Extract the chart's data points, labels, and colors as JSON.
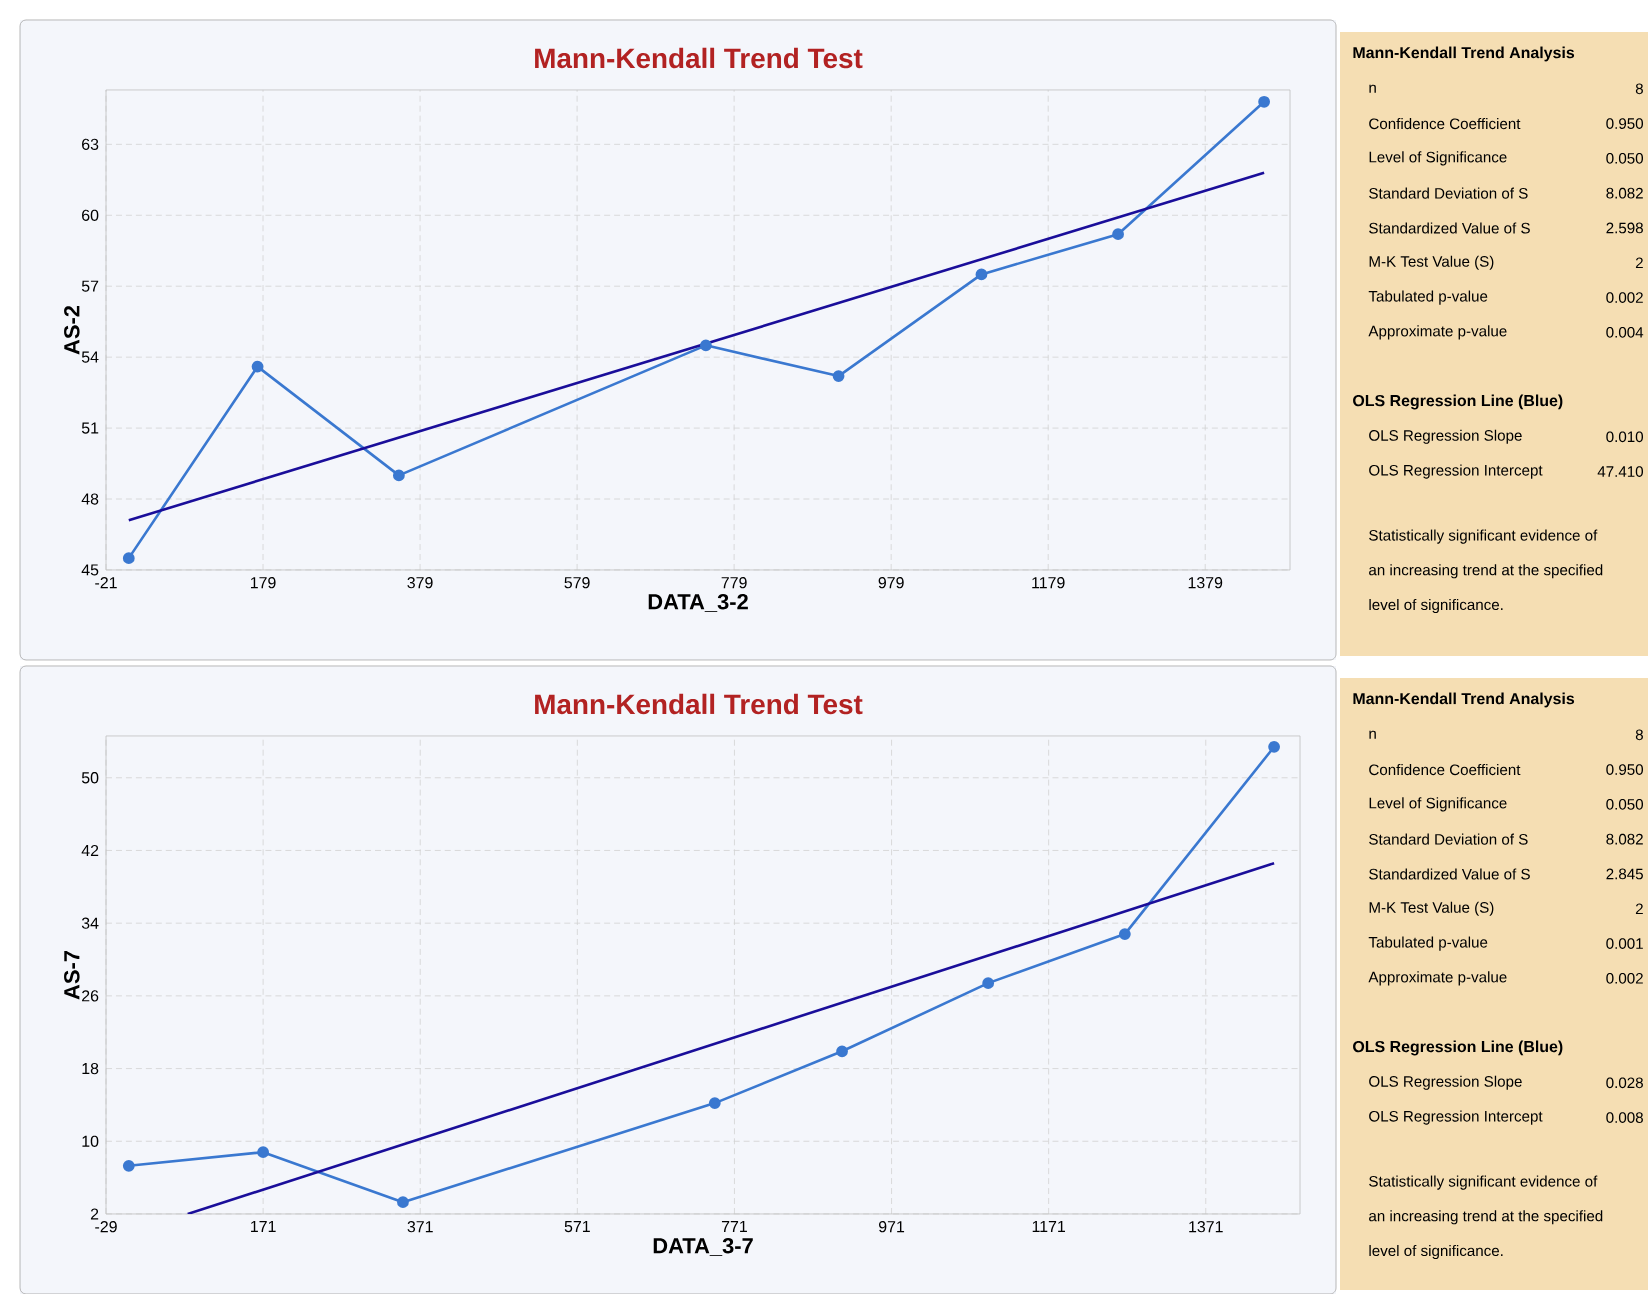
{
  "chart_data": [
    {
      "type": "line",
      "title": "Mann-Kendall Trend Test",
      "xlabel": "DATA_3-2",
      "ylabel": "AS-2",
      "xlim": [
        -21,
        1487
      ],
      "xticks": [
        -21,
        179,
        379,
        579,
        779,
        979,
        1179,
        1379
      ],
      "ylim": [
        45,
        65.3
      ],
      "yticks": [
        45,
        48,
        51,
        54,
        57,
        60,
        63
      ],
      "grid": true,
      "series": [
        {
          "color": "#3a78d0",
          "marker": "circle",
          "x": [
            8,
            172,
            352,
            743,
            912,
            1094,
            1268,
            1454
          ],
          "values": [
            45.5,
            53.6,
            49.0,
            54.5,
            53.2,
            57.5,
            59.2,
            64.8
          ]
        },
        {
          "color": "#1a0e9a",
          "marker": "none",
          "x": [
            8,
            1454
          ],
          "values": [
            47.1,
            61.8
          ]
        }
      ],
      "annotations": [
        "Mann-Kendall Trend Analysis",
        "n",
        "8",
        "Confidence Coefficient",
        "0.950",
        "Level of Significance",
        "0.050",
        "Standard Deviation of S",
        "8.082",
        "Standardized Value of S",
        "2.598",
        "M-K Test Value (S)",
        "2",
        "Tabulated p-value",
        "0.002",
        "Approximate p-value",
        "0.004",
        "OLS Regression Line (Blue)",
        "OLS Regression Slope",
        "0.010",
        "OLS Regression Intercept",
        "47.410",
        "Statistically significant evidence of an increasing trend at the specified level of significance."
      ]
    },
    {
      "type": "line",
      "title": "Mann-Kendall Trend Test",
      "xlabel": "DATA_3-7",
      "ylabel": "AS-7",
      "xlim": [
        -29,
        1491
      ],
      "xticks": [
        -29,
        171,
        371,
        571,
        771,
        971,
        1171,
        1371
      ],
      "ylim": [
        2,
        54.6
      ],
      "yticks": [
        2,
        10,
        18,
        26,
        34,
        42,
        50
      ],
      "grid": true,
      "series": [
        {
          "color": "#3a78d0",
          "marker": "circle",
          "x": [
            0,
            171,
            349,
            746,
            908,
            1094,
            1268,
            1458
          ],
          "values": [
            7.3,
            8.8,
            3.3,
            14.2,
            19.9,
            27.4,
            32.8,
            53.4
          ]
        },
        {
          "color": "#1a0e9a",
          "marker": "none",
          "x": [
            75,
            1458
          ],
          "values": [
            2.0,
            40.6
          ]
        }
      ],
      "annotations": [
        "Mann-Kendall Trend Analysis",
        "n",
        "8",
        "Confidence Coefficient",
        "0.950",
        "Level of Significance",
        "0.050",
        "Standard Deviation of S",
        "8.082",
        "Standardized Value of S",
        "2.845",
        "M-K Test Value (S)",
        "2",
        "Tabulated p-value",
        "0.001",
        "Approximate p-value",
        "0.002",
        "OLS Regression Line (Blue)",
        "OLS Regression Slope",
        "0.028",
        "OLS Regression Intercept",
        "0.008",
        "Statistically significant evidence of an increasing trend at the specified level of significance."
      ]
    }
  ]
}
